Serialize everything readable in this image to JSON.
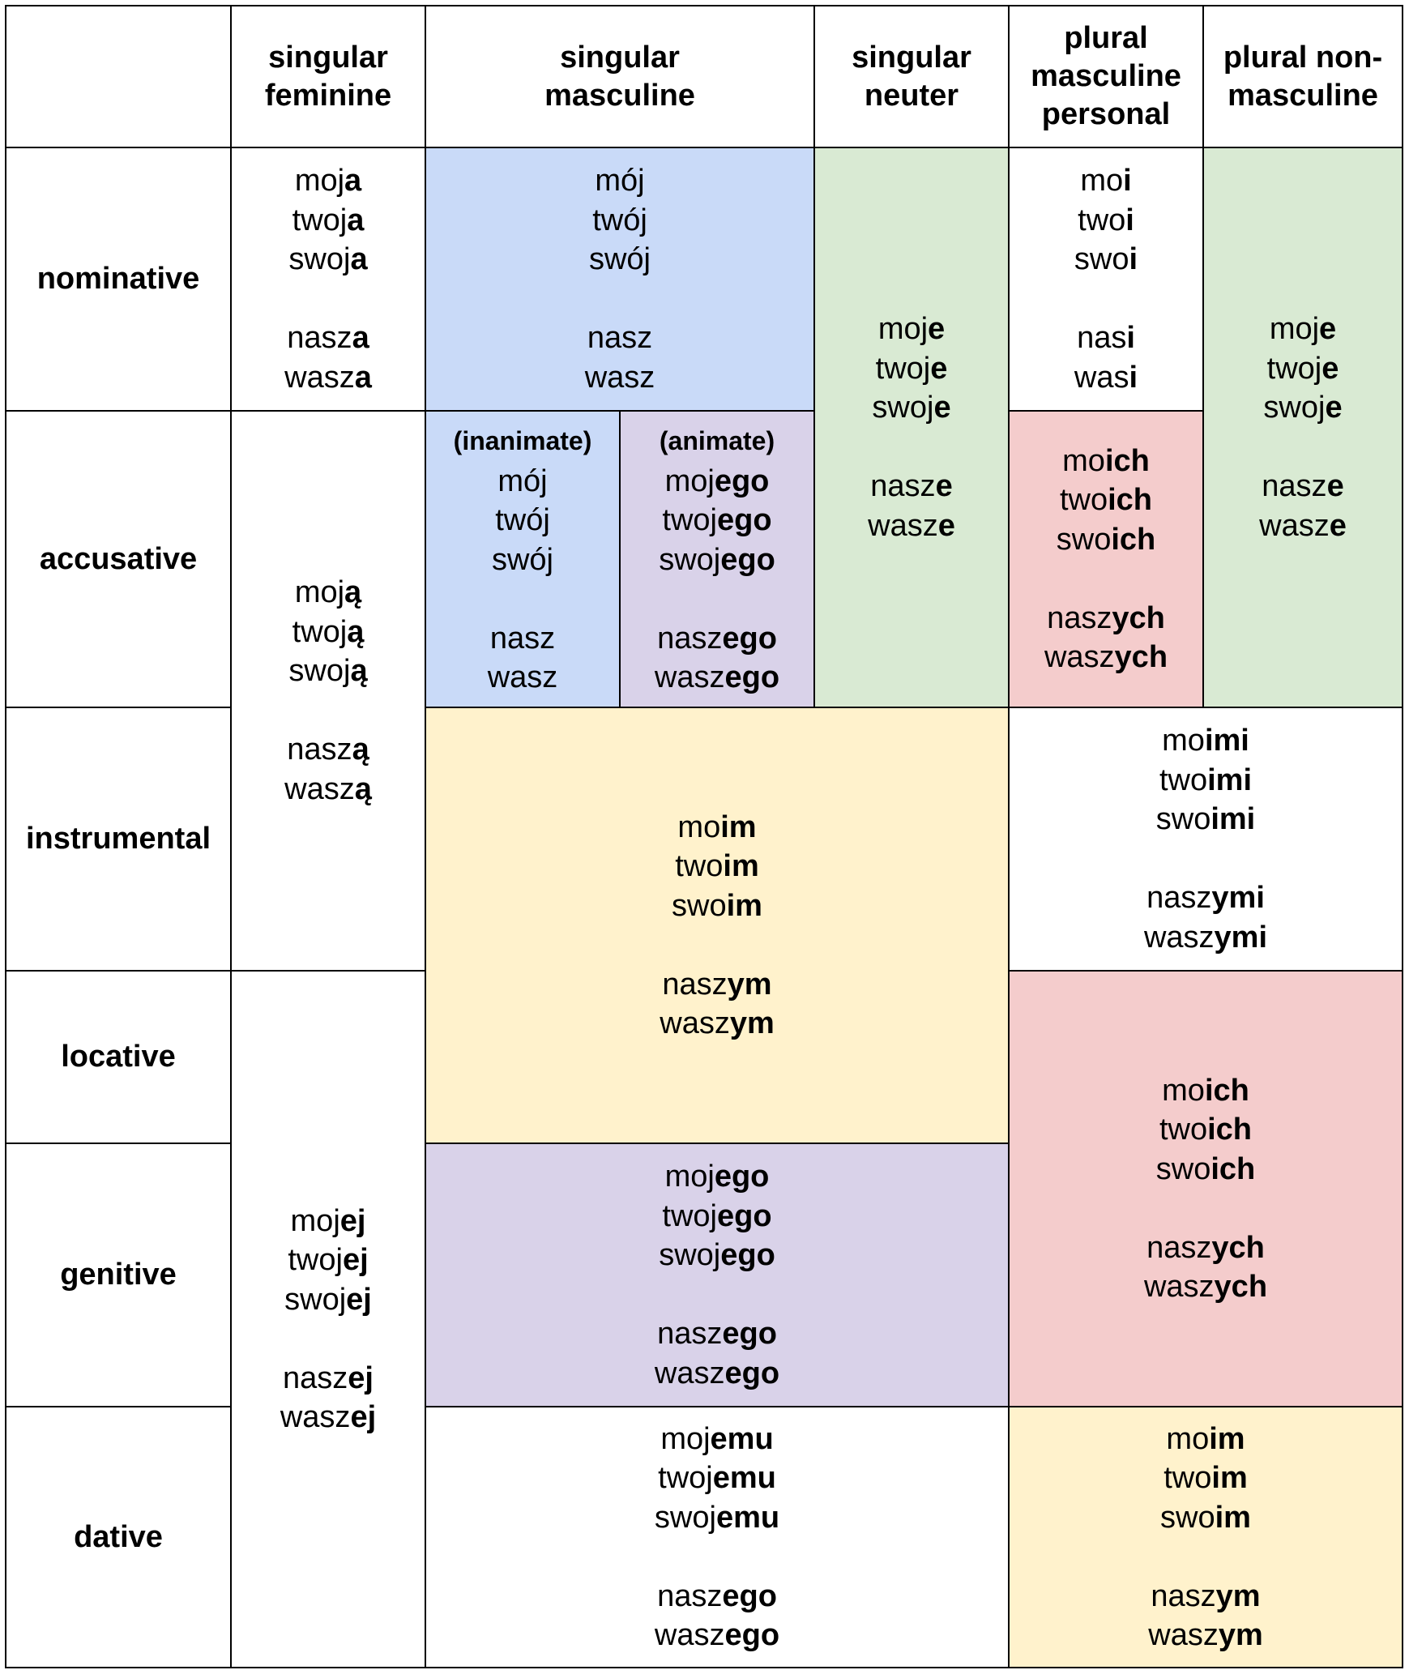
{
  "headers": {
    "blank": "",
    "singular_feminine": [
      "singular",
      "feminine"
    ],
    "singular_masculine": [
      "singular",
      "masculine"
    ],
    "singular_neuter": [
      "singular",
      "neuter"
    ],
    "plural_masculine_personal": [
      "plural",
      "masculine",
      "personal"
    ],
    "plural_non_masculine": [
      "plural non-",
      "masculine"
    ]
  },
  "cases": {
    "nominative": "nominative",
    "accusative": "accusative",
    "instrumental": "instrumental",
    "locative": "locative",
    "genitive": "genitive",
    "dative": "dative"
  },
  "labels": {
    "inanimate": "(inanimate)",
    "animate": "(animate)"
  },
  "colors": {
    "blue": "#c9daf8",
    "green": "#d9ead3",
    "purple": "#d9d2e9",
    "red": "#f4cccc",
    "yellow": "#fff2cc"
  },
  "forms": {
    "nom_fem": [
      [
        "moj",
        "a"
      ],
      [
        "twoj",
        "a"
      ],
      [
        "swoj",
        "a"
      ],
      null,
      [
        "nasz",
        "a"
      ],
      [
        "wasz",
        "a"
      ]
    ],
    "nom_masc": [
      [
        "mój",
        ""
      ],
      [
        "twój",
        ""
      ],
      [
        "swój",
        ""
      ],
      null,
      [
        "nasz",
        ""
      ],
      [
        "wasz",
        ""
      ]
    ],
    "neuter": [
      [
        "moj",
        "e"
      ],
      [
        "twoj",
        "e"
      ],
      [
        "swoj",
        "e"
      ],
      null,
      [
        "nasz",
        "e"
      ],
      [
        "wasz",
        "e"
      ]
    ],
    "nom_pl_mp": [
      [
        "mo",
        "i"
      ],
      [
        "two",
        "i"
      ],
      [
        "swo",
        "i"
      ],
      null,
      [
        "nas",
        "i"
      ],
      [
        "was",
        "i"
      ]
    ],
    "pl_nonmasc": [
      [
        "moj",
        "e"
      ],
      [
        "twoj",
        "e"
      ],
      [
        "swoj",
        "e"
      ],
      null,
      [
        "nasz",
        "e"
      ],
      [
        "wasz",
        "e"
      ]
    ],
    "acc_inst_fem": [
      [
        "moj",
        "ą"
      ],
      [
        "twoj",
        "ą"
      ],
      [
        "swoj",
        "ą"
      ],
      null,
      [
        "nasz",
        "ą"
      ],
      [
        "wasz",
        "ą"
      ]
    ],
    "acc_inanimate": [
      [
        "mój",
        ""
      ],
      [
        "twój",
        ""
      ],
      [
        "swój",
        ""
      ],
      null,
      [
        "nasz",
        ""
      ],
      [
        "wasz",
        ""
      ]
    ],
    "acc_animate": [
      [
        "moj",
        "ego"
      ],
      [
        "twoj",
        "ego"
      ],
      [
        "swoj",
        "ego"
      ],
      null,
      [
        "nasz",
        "ego"
      ],
      [
        "wasz",
        "ego"
      ]
    ],
    "acc_pl_mp": [
      [
        "mo",
        "ich"
      ],
      [
        "two",
        "ich"
      ],
      [
        "swo",
        "ich"
      ],
      null,
      [
        "nasz",
        "ych"
      ],
      [
        "wasz",
        "ych"
      ]
    ],
    "inst_loc_sg": [
      [
        "mo",
        "im"
      ],
      [
        "two",
        "im"
      ],
      [
        "swo",
        "im"
      ],
      null,
      [
        "nasz",
        "ym"
      ],
      [
        "wasz",
        "ym"
      ]
    ],
    "inst_pl": [
      [
        "mo",
        "imi"
      ],
      [
        "two",
        "imi"
      ],
      [
        "swo",
        "imi"
      ],
      null,
      [
        "nasz",
        "ymi"
      ],
      [
        "wasz",
        "ymi"
      ]
    ],
    "loc_gen_pl": [
      [
        "mo",
        "ich"
      ],
      [
        "two",
        "ich"
      ],
      [
        "swo",
        "ich"
      ],
      null,
      [
        "nasz",
        "ych"
      ],
      [
        "wasz",
        "ych"
      ]
    ],
    "gen_dat_fem": [
      [
        "moj",
        "ej"
      ],
      [
        "twoj",
        "ej"
      ],
      [
        "swoj",
        "ej"
      ],
      null,
      [
        "nasz",
        "ej"
      ],
      [
        "wasz",
        "ej"
      ]
    ],
    "gen_sg": [
      [
        "moj",
        "ego"
      ],
      [
        "twoj",
        "ego"
      ],
      [
        "swoj",
        "ego"
      ],
      null,
      [
        "nasz",
        "ego"
      ],
      [
        "wasz",
        "ego"
      ]
    ],
    "dat_sg": [
      [
        "moj",
        "emu"
      ],
      [
        "twoj",
        "emu"
      ],
      [
        "swoj",
        "emu"
      ],
      null,
      [
        "nasz",
        "ego"
      ],
      [
        "wasz",
        "ego"
      ]
    ],
    "dat_pl": [
      [
        "mo",
        "im"
      ],
      [
        "two",
        "im"
      ],
      [
        "swo",
        "im"
      ],
      null,
      [
        "nasz",
        "ym"
      ],
      [
        "wasz",
        "ym"
      ]
    ]
  }
}
